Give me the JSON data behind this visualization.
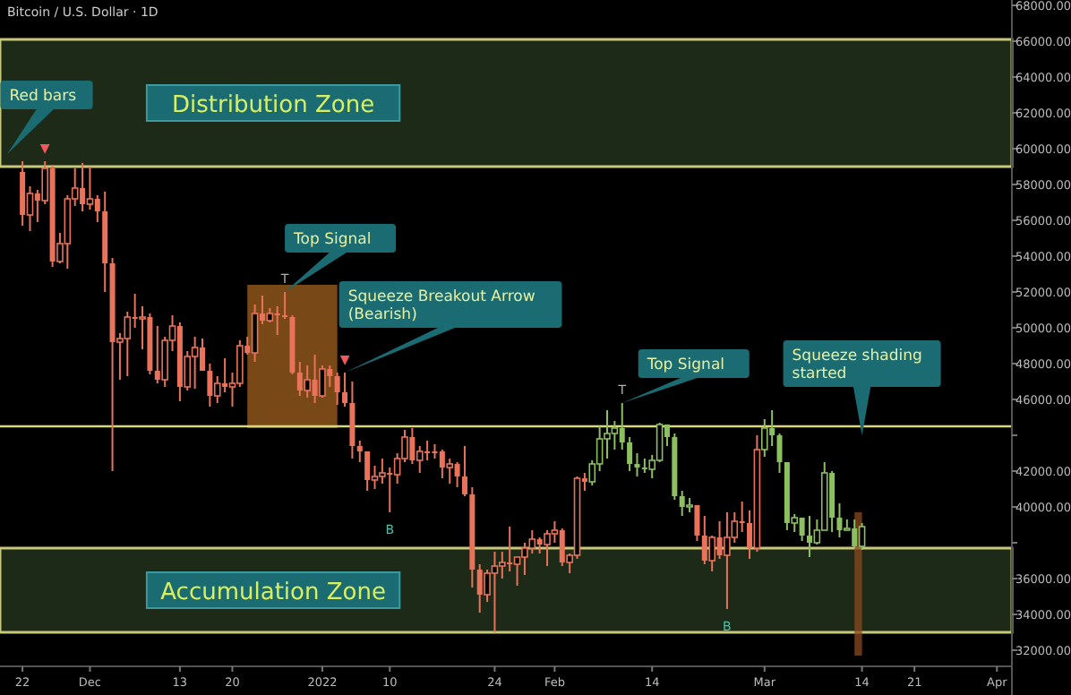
{
  "chart_data": {
    "type": "candlestick",
    "title": "Bitcoin / U.S. Dollar · 1D",
    "xlim": [
      "2021-11-19",
      "2022-04-03"
    ],
    "ylim": [
      31100,
      68300
    ],
    "xticks": [
      {
        "value": "2021-11-22",
        "label": "22"
      },
      {
        "value": "2021-12-01",
        "label": "Dec"
      },
      {
        "value": "2021-12-13",
        "label": "13"
      },
      {
        "value": "2021-12-20",
        "label": "20"
      },
      {
        "value": "2022-01-01",
        "label": "2022"
      },
      {
        "value": "2022-01-10",
        "label": "10"
      },
      {
        "value": "2022-01-24",
        "label": "24"
      },
      {
        "value": "2022-02-01",
        "label": "Feb"
      },
      {
        "value": "2022-02-14",
        "label": "14"
      },
      {
        "value": "2022-03-01",
        "label": "Mar"
      },
      {
        "value": "2022-03-14",
        "label": "14"
      },
      {
        "value": "2022-03-21",
        "label": "21"
      },
      {
        "value": "2022-04-01",
        "label": "Apr"
      }
    ],
    "yticks": [
      {
        "value": 68000,
        "label": "68000.00"
      },
      {
        "value": 66000,
        "label": "66000.00"
      },
      {
        "value": 64000,
        "label": "64000.00"
      },
      {
        "value": 62000,
        "label": "62000.00"
      },
      {
        "value": 60000,
        "label": "60000.00"
      },
      {
        "value": 58000,
        "label": "58000.00"
      },
      {
        "value": 56000,
        "label": "56000.00"
      },
      {
        "value": 54000,
        "label": "54000.00"
      },
      {
        "value": 52000,
        "label": "52000.00"
      },
      {
        "value": 50000,
        "label": "50000.00"
      },
      {
        "value": 48000,
        "label": "48000.00"
      },
      {
        "value": 46000,
        "label": "46000.00"
      },
      {
        "value": 44000,
        "label": null
      },
      {
        "value": 42000,
        "label": "42000.00"
      },
      {
        "value": 40000,
        "label": "40000.00"
      },
      {
        "value": 38000,
        "label": null
      },
      {
        "value": 36000,
        "label": "36000.00"
      },
      {
        "value": 34000,
        "label": "34000.00"
      },
      {
        "value": 32000,
        "label": "32000.00"
      }
    ],
    "series": [
      {
        "color": "#e8735a",
        "x": [
          "2021-11-22",
          "2021-11-23",
          "2021-11-24",
          "2021-11-25",
          "2021-11-26",
          "2021-11-27",
          "2021-11-28",
          "2021-11-29",
          "2021-11-30",
          "2021-12-01",
          "2021-12-02",
          "2021-12-03",
          "2021-12-04",
          "2021-12-05",
          "2021-12-06",
          "2021-12-07",
          "2021-12-08",
          "2021-12-09",
          "2021-12-10",
          "2021-12-11",
          "2021-12-12",
          "2021-12-13",
          "2021-12-14",
          "2021-12-15",
          "2021-12-16",
          "2021-12-17",
          "2021-12-18",
          "2021-12-19",
          "2021-12-20",
          "2021-12-21",
          "2021-12-22",
          "2021-12-23",
          "2021-12-24",
          "2021-12-25",
          "2021-12-26",
          "2021-12-27",
          "2021-12-28",
          "2021-12-29",
          "2021-12-30",
          "2021-12-31",
          "2022-01-01",
          "2022-01-02",
          "2022-01-03",
          "2022-01-04",
          "2022-01-05",
          "2022-01-06",
          "2022-01-07",
          "2022-01-08",
          "2022-01-09",
          "2022-01-10",
          "2022-01-11",
          "2022-01-12",
          "2022-01-13",
          "2022-01-14",
          "2022-01-15",
          "2022-01-16",
          "2022-01-17",
          "2022-01-18",
          "2022-01-19",
          "2022-01-20",
          "2022-01-21",
          "2022-01-22",
          "2022-01-23",
          "2022-01-24",
          "2022-01-25",
          "2022-01-26",
          "2022-01-27",
          "2022-01-28",
          "2022-01-29",
          "2022-01-30",
          "2022-01-31",
          "2022-02-01",
          "2022-02-02",
          "2022-02-03",
          "2022-02-04",
          "2022-02-05"
        ],
        "ohlc": [
          [
            58700,
            59300,
            55700,
            56300
          ],
          [
            56300,
            57900,
            55400,
            57500
          ],
          [
            57500,
            57700,
            55900,
            57100
          ],
          [
            57100,
            59300,
            56900,
            58900
          ],
          [
            58900,
            59100,
            53400,
            53700
          ],
          [
            53700,
            55300,
            53600,
            54700
          ],
          [
            54700,
            57400,
            53300,
            57200
          ],
          [
            57200,
            58900,
            56800,
            57800
          ],
          [
            57800,
            59200,
            56500,
            56900
          ],
          [
            56900,
            59000,
            56600,
            57200
          ],
          [
            57200,
            57400,
            55900,
            56500
          ],
          [
            56500,
            57600,
            52000,
            53600
          ],
          [
            53600,
            53900,
            42000,
            49200
          ],
          [
            49200,
            49700,
            47100,
            49400
          ],
          [
            49400,
            50900,
            47300,
            50600
          ],
          [
            50600,
            51900,
            50000,
            50500
          ],
          [
            50500,
            51200,
            48800,
            50600
          ],
          [
            50600,
            50800,
            47400,
            47600
          ],
          [
            47600,
            50100,
            46900,
            47100
          ],
          [
            47100,
            49500,
            46700,
            49300
          ],
          [
            49300,
            50700,
            48700,
            50100
          ],
          [
            50100,
            50300,
            45900,
            46700
          ],
          [
            46700,
            48700,
            46500,
            48400
          ],
          [
            48400,
            49500,
            46600,
            48900
          ],
          [
            48900,
            49400,
            47600,
            47600
          ],
          [
            47600,
            48000,
            45600,
            46200
          ],
          [
            46200,
            47300,
            45800,
            46900
          ],
          [
            46900,
            48300,
            46400,
            46700
          ],
          [
            46700,
            47500,
            45600,
            46900
          ],
          [
            46900,
            49300,
            46700,
            49000
          ],
          [
            49000,
            49500,
            48500,
            48600
          ],
          [
            48600,
            51300,
            48100,
            50800
          ],
          [
            50800,
            51800,
            50200,
            50400
          ],
          [
            50400,
            51100,
            50300,
            50800
          ],
          [
            50800,
            51200,
            49600,
            50700
          ],
          [
            50700,
            52000,
            50500,
            50600
          ],
          [
            50600,
            50700,
            47400,
            47500
          ],
          [
            47500,
            48100,
            46200,
            46500
          ],
          [
            46500,
            47900,
            46100,
            47100
          ],
          [
            47100,
            48500,
            45800,
            46200
          ],
          [
            46200,
            47900,
            46100,
            47700
          ],
          [
            47700,
            47900,
            46700,
            47300
          ],
          [
            47300,
            47500,
            45700,
            46400
          ],
          [
            46400,
            47500,
            45600,
            45800
          ],
          [
            45800,
            47000,
            42700,
            43400
          ],
          [
            43400,
            43700,
            42500,
            43100
          ],
          [
            43100,
            43100,
            40900,
            41500
          ],
          [
            41500,
            42300,
            41000,
            41700
          ],
          [
            41700,
            42700,
            41300,
            41900
          ],
          [
            41900,
            42200,
            39700,
            41800
          ],
          [
            41800,
            43000,
            41300,
            42700
          ],
          [
            42700,
            44300,
            42500,
            43900
          ],
          [
            43900,
            44400,
            42400,
            42600
          ],
          [
            42600,
            43400,
            41900,
            43100
          ],
          [
            43100,
            43700,
            42600,
            43100
          ],
          [
            43100,
            43500,
            42700,
            43100
          ],
          [
            43100,
            43200,
            41600,
            42200
          ],
          [
            42200,
            42700,
            41300,
            42400
          ],
          [
            42400,
            42500,
            41100,
            41700
          ],
          [
            41700,
            43400,
            40600,
            40700
          ],
          [
            40700,
            41100,
            35500,
            36500
          ],
          [
            36500,
            36800,
            34100,
            35100
          ],
          [
            35100,
            36500,
            34700,
            36300
          ],
          [
            36300,
            37500,
            33000,
            36700
          ],
          [
            36700,
            37500,
            36000,
            36900
          ],
          [
            36900,
            38900,
            36400,
            36800
          ],
          [
            36800,
            37200,
            35600,
            37200
          ],
          [
            37200,
            38000,
            36200,
            37700
          ],
          [
            37700,
            38700,
            37400,
            38200
          ],
          [
            38200,
            38300,
            37400,
            37900
          ],
          [
            37900,
            38700,
            36700,
            38500
          ],
          [
            38500,
            39200,
            38000,
            38700
          ],
          [
            38700,
            38800,
            36700,
            36900
          ],
          [
            36900,
            37400,
            36300,
            37300
          ],
          [
            37300,
            41700,
            37100,
            41600
          ],
          [
            41600,
            41900,
            40900,
            41400
          ]
        ]
      },
      {
        "color": "#8cbf5f",
        "x": [
          "2022-02-06",
          "2022-02-07",
          "2022-02-08",
          "2022-02-09",
          "2022-02-10",
          "2022-02-11",
          "2022-02-12",
          "2022-02-13",
          "2022-02-14",
          "2022-02-15",
          "2022-02-16",
          "2022-02-17",
          "2022-02-18",
          "2022-02-19"
        ],
        "ohlc": [
          [
            41400,
            42600,
            41200,
            42400
          ],
          [
            42400,
            44500,
            42000,
            43800
          ],
          [
            43800,
            45400,
            42700,
            44100
          ],
          [
            44100,
            44800,
            43200,
            44400
          ],
          [
            44400,
            45800,
            43200,
            43600
          ],
          [
            43600,
            43900,
            42000,
            42400
          ],
          [
            42400,
            43000,
            41700,
            42200
          ],
          [
            42200,
            42700,
            41900,
            42100
          ],
          [
            42100,
            42900,
            41600,
            42600
          ],
          [
            42600,
            44700,
            42500,
            44600
          ],
          [
            44600,
            44600,
            43400,
            43900
          ],
          [
            43900,
            44100,
            40400,
            40600
          ],
          [
            40600,
            40900,
            39500,
            40000
          ],
          [
            40000,
            40500,
            39700,
            40100
          ]
        ]
      },
      {
        "color": "#e8735a",
        "x": [
          "2022-02-20",
          "2022-02-21",
          "2022-02-22",
          "2022-02-23",
          "2022-02-24",
          "2022-02-25",
          "2022-02-26",
          "2022-02-27",
          "2022-02-28"
        ],
        "ohlc": [
          [
            40100,
            40100,
            38100,
            38400
          ],
          [
            38400,
            39500,
            36800,
            37000
          ],
          [
            37000,
            38400,
            36400,
            38300
          ],
          [
            38300,
            39200,
            37100,
            37300
          ],
          [
            37300,
            39700,
            34300,
            38300
          ],
          [
            38300,
            39700,
            38000,
            39200
          ],
          [
            39200,
            40300,
            38600,
            39100
          ],
          [
            39100,
            39800,
            37100,
            37700
          ],
          [
            37700,
            44000,
            37500,
            43200
          ]
        ]
      },
      {
        "color": "#8cbf5f",
        "x": [
          "2022-03-01",
          "2022-03-02",
          "2022-03-03",
          "2022-03-04",
          "2022-03-05",
          "2022-03-06",
          "2022-03-07",
          "2022-03-08",
          "2022-03-09",
          "2022-03-10",
          "2022-03-11",
          "2022-03-12",
          "2022-03-13",
          "2022-03-14"
        ],
        "ohlc": [
          [
            43200,
            44900,
            42800,
            44400
          ],
          [
            44400,
            45400,
            43400,
            44000
          ],
          [
            44000,
            44100,
            41900,
            42500
          ],
          [
            42500,
            42500,
            38700,
            39100
          ],
          [
            39100,
            39600,
            38600,
            39400
          ],
          [
            39400,
            39400,
            38100,
            38400
          ],
          [
            38400,
            39500,
            37200,
            38000
          ],
          [
            38000,
            39300,
            37900,
            38700
          ],
          [
            38700,
            42500,
            38700,
            41900
          ],
          [
            41900,
            42000,
            38600,
            39400
          ],
          [
            39400,
            40200,
            38300,
            38700
          ],
          [
            38700,
            39300,
            38700,
            38800
          ],
          [
            38800,
            39300,
            37700,
            37800
          ],
          [
            37800,
            39100,
            37600,
            38900
          ]
        ]
      }
    ],
    "bands": [
      {
        "axis": "y",
        "from": 59000,
        "to": 66100,
        "label": "Distribution Zone",
        "color": "#1d2a18"
      },
      {
        "axis": "y",
        "from": 33000,
        "to": 37700,
        "label": "Accumulation Zone",
        "color": "#1d2a18"
      },
      {
        "axis": "x",
        "from": "2021-12-22",
        "to": "2022-01-03",
        "color": "#a0601f"
      },
      {
        "axis": "x",
        "from": "2022-03-13",
        "to": "2022-03-14",
        "color": "#8a4a1f"
      }
    ],
    "ref_lines": [
      {
        "axis": "y",
        "value": 44500,
        "color": "#d8d87a"
      }
    ],
    "annotations": [
      "Red bars",
      {
        "text": "▼",
        "x": "2021-11-25",
        "y": 59300
      },
      {
        "text": "T",
        "x": "2021-12-27",
        "y": 52000
      },
      {
        "text": "Top Signal",
        "x": "2021-12-27",
        "y": 52000
      },
      {
        "text": "Squeeze Breakout Arrow (Bearish)",
        "x": "2022-01-04",
        "y": 47500
      },
      {
        "text": "▼",
        "x": "2022-01-04",
        "y": 47500
      },
      {
        "text": "B",
        "x": "2022-01-10",
        "y": 39700
      },
      {
        "text": "T",
        "x": "2022-02-10",
        "y": 45800
      },
      {
        "text": "Top Signal",
        "x": "2022-02-10",
        "y": 45800
      },
      {
        "text": "Squeeze shading started",
        "x": "2022-03-14",
        "y": 44000
      },
      {
        "text": "B",
        "x": "2022-02-24",
        "y": 34300
      }
    ]
  }
}
